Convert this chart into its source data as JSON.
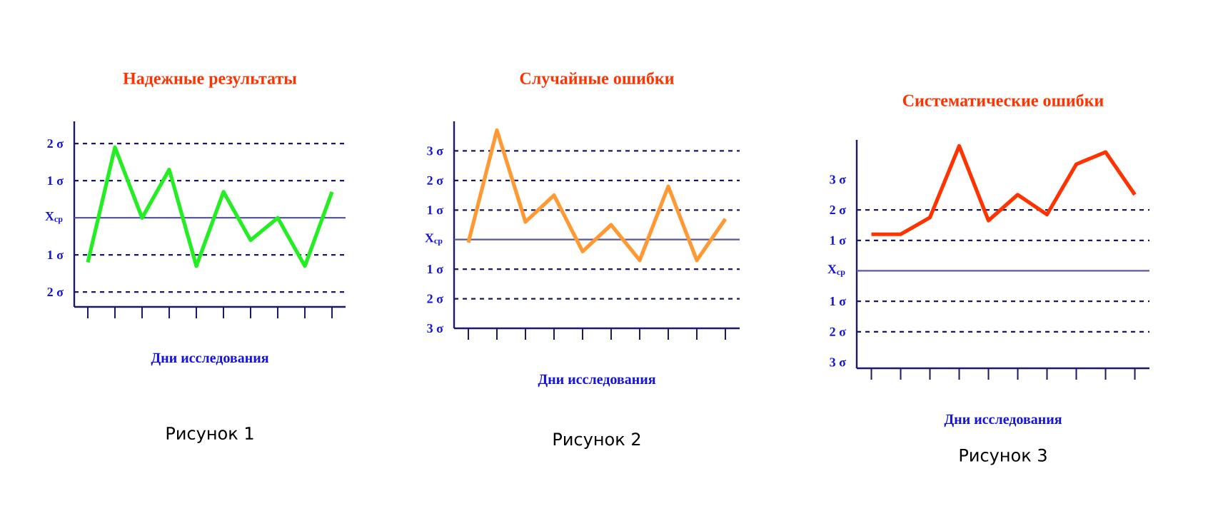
{
  "chart_data": [
    {
      "type": "line",
      "title": "Надежные результаты",
      "xlabel": "Дни исследования",
      "categories": [
        null,
        null,
        null,
        null,
        null,
        null,
        null,
        null,
        null,
        null
      ],
      "series": [
        {
          "color": "#22ee22",
          "values": [
            -1.2,
            1.9,
            0,
            1.3,
            -1.3,
            0.7,
            -0.6,
            0,
            -1.3,
            0.7
          ]
        }
      ],
      "ylim": [
        -2.4,
        2.6
      ],
      "yticks": [
        {
          "value": 2,
          "label": "2 σ"
        },
        {
          "value": 1,
          "label": "1 σ"
        },
        {
          "value": 0,
          "label": "X$_{ср}$"
        },
        {
          "value": -1,
          "label": "1 σ"
        },
        {
          "value": -2,
          "label": "2 σ"
        }
      ],
      "ref_lines": [
        {
          "axis": "y",
          "value": 2,
          "line_style": "dashed"
        },
        {
          "axis": "y",
          "value": 1,
          "line_style": "dashed"
        },
        {
          "axis": "y",
          "value": 0,
          "line_style": "solid"
        },
        {
          "axis": "y",
          "value": -1,
          "line_style": "dashed"
        },
        {
          "axis": "y",
          "value": -2,
          "line_style": "dashed"
        }
      ],
      "annotations": [
        "Рисунок 1"
      ],
      "grid": false,
      "line_style": "solid"
    },
    {
      "type": "line",
      "title": "Случайные ошибки",
      "xlabel": "Дни исследования",
      "categories": [
        null,
        null,
        null,
        null,
        null,
        null,
        null,
        null,
        null,
        null
      ],
      "series": [
        {
          "color": "#ff9933",
          "values": [
            -0.1,
            3.7,
            0.6,
            1.5,
            -0.4,
            0.5,
            -0.7,
            1.8,
            -0.7,
            0.7
          ]
        }
      ],
      "ylim": [
        -3,
        4
      ],
      "yticks": [
        {
          "value": 3,
          "label": "3 σ"
        },
        {
          "value": 2,
          "label": "2 σ"
        },
        {
          "value": 1,
          "label": "1 σ"
        },
        {
          "value": 0,
          "label": "X$_{ср}$"
        },
        {
          "value": -1,
          "label": "1 σ"
        },
        {
          "value": -2,
          "label": "2 σ"
        },
        {
          "value": -3,
          "label": "3 σ"
        }
      ],
      "ref_lines": [
        {
          "axis": "y",
          "value": 3,
          "line_style": "dashed"
        },
        {
          "axis": "y",
          "value": 2,
          "line_style": "dashed"
        },
        {
          "axis": "y",
          "value": 1,
          "line_style": "dashed"
        },
        {
          "axis": "y",
          "value": 0,
          "line_style": "solid"
        },
        {
          "axis": "y",
          "value": -1,
          "line_style": "dashed"
        },
        {
          "axis": "y",
          "value": -2,
          "line_style": "dashed"
        }
      ],
      "annotations": [
        "Рисунок 2"
      ],
      "grid": false,
      "line_style": "solid"
    },
    {
      "type": "line",
      "title": "Систематические ошибки",
      "xlabel": "Дни исследования",
      "categories": [
        null,
        null,
        null,
        null,
        null,
        null,
        null,
        null,
        null,
        null
      ],
      "series": [
        {
          "color": "#ff3300",
          "values": [
            1.2,
            1.2,
            1.75,
            4.1,
            1.65,
            2.5,
            1.85,
            3.5,
            3.9,
            2.5
          ]
        }
      ],
      "ylim": [
        -3.2,
        4.3
      ],
      "yticks": [
        {
          "value": 3,
          "label": "3 σ"
        },
        {
          "value": 2,
          "label": "2 σ"
        },
        {
          "value": 1,
          "label": "1 σ"
        },
        {
          "value": 0,
          "label": "X$_{ср}$"
        },
        {
          "value": -1,
          "label": "1 σ"
        },
        {
          "value": -2,
          "label": "2 σ"
        },
        {
          "value": -3,
          "label": "3 σ"
        }
      ],
      "ref_lines": [
        {
          "axis": "y",
          "value": 2,
          "line_style": "dashed"
        },
        {
          "axis": "y",
          "value": 1,
          "line_style": "dashed"
        },
        {
          "axis": "y",
          "value": 0,
          "line_style": "solid"
        },
        {
          "axis": "y",
          "value": -1,
          "line_style": "dashed"
        },
        {
          "axis": "y",
          "value": -2,
          "line_style": "dashed"
        }
      ],
      "annotations": [
        "Рисунок 3"
      ],
      "grid": false,
      "line_style": "solid"
    }
  ]
}
